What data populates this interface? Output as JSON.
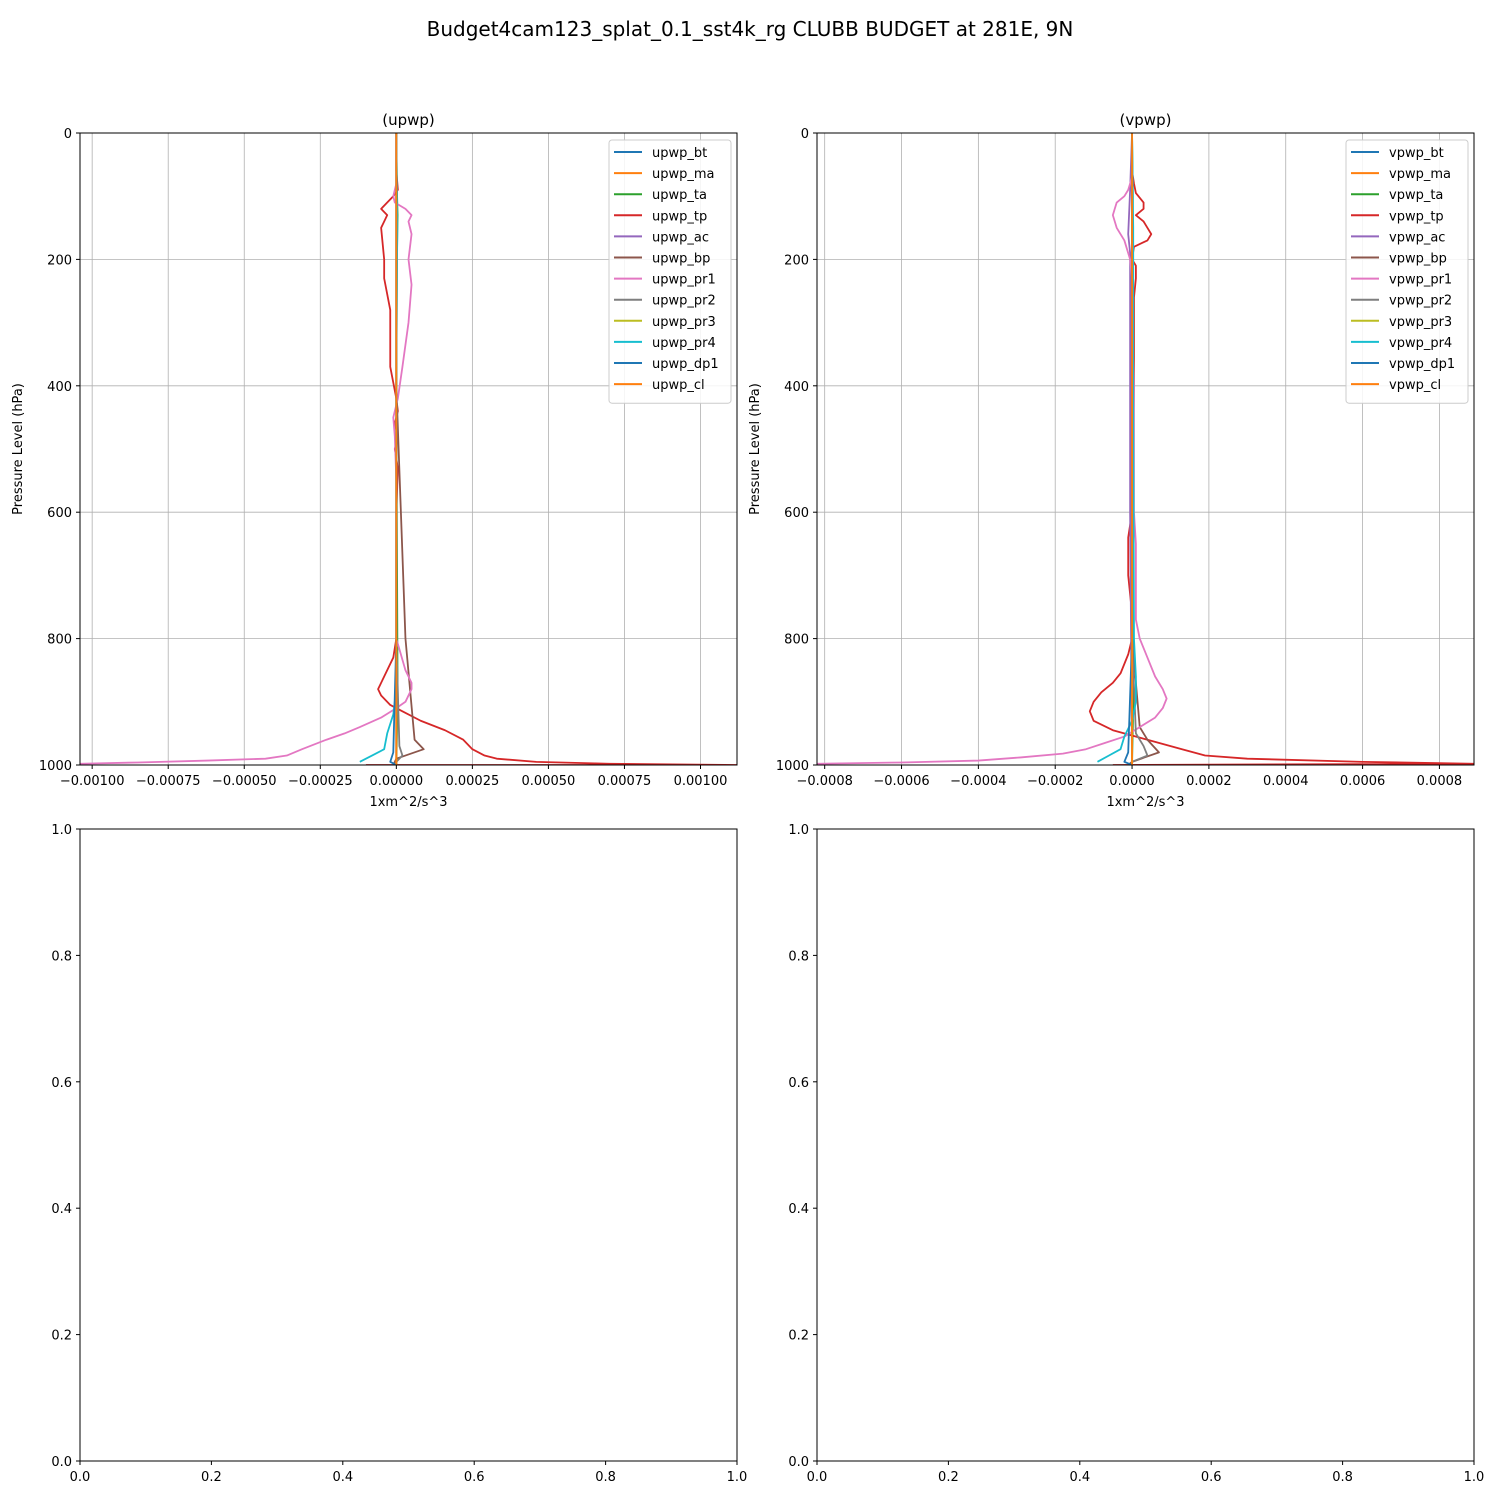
{
  "figure": {
    "suptitle": "Budget4cam123_splat_0.1_sst4k_rg CLUBB BUDGET at 281E, 9N"
  },
  "chart_data": [
    {
      "type": "line",
      "title": "(upwp)",
      "xlabel": "1xm^2/s^3",
      "ylabel": "Pressure Level (hPa)",
      "xlim": [
        -0.00104,
        0.00112
      ],
      "ylim": [
        1000,
        0
      ],
      "xticks": [
        -0.001,
        -0.00075,
        -0.0005,
        -0.00025,
        0,
        0.00025,
        0.0005,
        0.00075,
        0.001
      ],
      "xtick_labels": [
        "−0.00100",
        "−0.00075",
        "−0.00050",
        "−0.00025",
        "0.00000",
        "0.00025",
        "0.00050",
        "0.00075",
        "0.00100"
      ],
      "yticks": [
        0,
        200,
        400,
        600,
        800,
        1000
      ],
      "ytick_labels": [
        "0",
        "200",
        "400",
        "600",
        "800",
        "1000"
      ],
      "grid": true,
      "legend_loc": "upper right",
      "series": [
        {
          "name": "upwp_bt",
          "color": "#1f77b4",
          "x": [
            0,
            0,
            0,
            0,
            0,
            0,
            0
          ],
          "y": [
            0,
            200,
            400,
            600,
            800,
            950,
            1000
          ]
        },
        {
          "name": "upwp_ma",
          "color": "#ff7f0e",
          "x": [
            0,
            0,
            0,
            0,
            0,
            0,
            0
          ],
          "y": [
            0,
            200,
            400,
            600,
            800,
            950,
            1000
          ]
        },
        {
          "name": "upwp_ta",
          "color": "#2ca02c",
          "x": [
            0,
            2e-06,
            4e-06,
            2e-06,
            1e-06,
            0,
            4e-06,
            2e-06,
            0
          ],
          "y": [
            0,
            90,
            130,
            200,
            300,
            420,
            880,
            950,
            1000
          ]
        },
        {
          "name": "upwp_tp",
          "color": "#d62728",
          "x": [
            0,
            0,
            5e-06,
            -1e-05,
            -3e-05,
            -5e-05,
            -3e-05,
            -4e-05,
            -5e-05,
            -4e-05,
            -4e-05,
            -2e-05,
            -2e-05,
            0,
            5e-06,
            -5e-06,
            5e-06,
            -5e-06,
            5e-06,
            0,
            0,
            0,
            -1e-05,
            -4e-05,
            -6e-05,
            -5e-05,
            -2e-05,
            2e-05,
            8e-05,
            0.00016,
            0.00022,
            0.00025,
            0.00029,
            0.00033,
            0.00046,
            0.0007,
            0.00112,
            -0.0001
          ],
          "y": [
            0,
            60,
            90,
            100,
            110,
            120,
            130,
            140,
            150,
            200,
            230,
            280,
            370,
            420,
            440,
            460,
            480,
            500,
            530,
            600,
            700,
            800,
            830,
            860,
            880,
            890,
            905,
            915,
            930,
            945,
            960,
            975,
            985,
            990,
            995,
            998,
            1000,
            1000
          ]
        },
        {
          "name": "upwp_ac",
          "color": "#9467bd",
          "x": [
            0,
            0,
            0,
            0,
            0,
            0,
            0
          ],
          "y": [
            0,
            200,
            400,
            600,
            800,
            950,
            1000
          ]
        },
        {
          "name": "upwp_bp",
          "color": "#8c564b",
          "x": [
            0,
            0,
            0,
            3e-05,
            6e-05,
            9e-05,
            0,
            -1e-05
          ],
          "y": [
            0,
            200,
            400,
            800,
            960,
            975,
            990,
            1000
          ]
        },
        {
          "name": "upwp_pr1",
          "color": "#e377c2",
          "x": [
            0,
            0,
            -1e-05,
            -5e-06,
            3e-05,
            5e-05,
            4e-05,
            5e-05,
            4e-05,
            5e-05,
            4e-05,
            2e-05,
            5e-06,
            -1e-05,
            -5e-06,
            0,
            0,
            3e-05,
            5e-05,
            5e-05,
            3e-05,
            0,
            -5e-05,
            -0.00012,
            -0.00017,
            -0.00023,
            -0.00031,
            -0.00036,
            -0.00043,
            -0.00062,
            -0.00085,
            -0.00104
          ],
          "y": [
            0,
            80,
            100,
            110,
            120,
            130,
            140,
            160,
            200,
            240,
            300,
            370,
            420,
            450,
            480,
            550,
            800,
            850,
            870,
            880,
            900,
            910,
            925,
            940,
            950,
            960,
            975,
            985,
            990,
            993,
            996,
            998
          ]
        },
        {
          "name": "upwp_pr2",
          "color": "#7f7f7f",
          "x": [
            0,
            0,
            0,
            0,
            1e-05,
            2e-05,
            0,
            0
          ],
          "y": [
            0,
            200,
            400,
            800,
            970,
            985,
            995,
            1000
          ]
        },
        {
          "name": "upwp_pr3",
          "color": "#bcbd22",
          "x": [
            0,
            0,
            0,
            0,
            0,
            0,
            0
          ],
          "y": [
            0,
            200,
            400,
            600,
            800,
            950,
            1000
          ]
        },
        {
          "name": "upwp_pr4",
          "color": "#17becf",
          "x": [
            0,
            3e-06,
            0,
            0,
            -1e-05,
            -3e-05,
            -4e-05,
            -8e-05,
            -0.00012
          ],
          "y": [
            0,
            150,
            400,
            880,
            920,
            950,
            975,
            985,
            995
          ]
        },
        {
          "name": "upwp_dp1",
          "color": "#1f77b4",
          "x": [
            0,
            0,
            0,
            0,
            -1e-05,
            -2e-05,
            0
          ],
          "y": [
            0,
            200,
            400,
            800,
            980,
            995,
            1000
          ]
        },
        {
          "name": "upwp_cl",
          "color": "#ff7f0e",
          "x": [
            0,
            0,
            0,
            0,
            0,
            0,
            0
          ],
          "y": [
            0,
            200,
            400,
            600,
            800,
            950,
            1000
          ]
        }
      ]
    },
    {
      "type": "line",
      "title": "(vpwp)",
      "xlabel": "1xm^2/s^3",
      "ylabel": "Pressure Level (hPa)",
      "xlim": [
        -0.00082,
        0.00089
      ],
      "ylim": [
        1000,
        0
      ],
      "xticks": [
        -0.0008,
        -0.0006,
        -0.0004,
        -0.0002,
        0,
        0.0002,
        0.0004,
        0.0006,
        0.0008
      ],
      "xtick_labels": [
        "−0.0008",
        "−0.0006",
        "−0.0004",
        "−0.0002",
        "0.0000",
        "0.0002",
        "0.0004",
        "0.0006",
        "0.0008"
      ],
      "yticks": [
        0,
        200,
        400,
        600,
        800,
        1000
      ],
      "ytick_labels": [
        "0",
        "200",
        "400",
        "600",
        "800",
        "1000"
      ],
      "grid": true,
      "legend_loc": "upper right",
      "series": [
        {
          "name": "vpwp_bt",
          "color": "#1f77b4",
          "x": [
            0,
            0,
            0,
            0,
            0,
            0,
            0
          ],
          "y": [
            0,
            200,
            400,
            600,
            800,
            950,
            1000
          ]
        },
        {
          "name": "vpwp_ma",
          "color": "#ff7f0e",
          "x": [
            0,
            0,
            0,
            0,
            0,
            0,
            0
          ],
          "y": [
            0,
            200,
            400,
            600,
            800,
            950,
            1000
          ]
        },
        {
          "name": "vpwp_ta",
          "color": "#2ca02c",
          "x": [
            0,
            2e-06,
            0,
            1e-06,
            0,
            3e-06,
            0
          ],
          "y": [
            0,
            100,
            200,
            400,
            700,
            900,
            1000
          ]
        },
        {
          "name": "vpwp_tp",
          "color": "#d62728",
          "x": [
            0,
            0,
            5e-06,
            1e-05,
            3e-05,
            3e-05,
            1e-05,
            3e-05,
            4e-05,
            5e-05,
            4e-05,
            5e-06,
            0,
            1e-05,
            1e-05,
            5e-06,
            5e-06,
            5e-06,
            5e-06,
            5e-06,
            0,
            -1e-05,
            -1e-05,
            0,
            0,
            -1e-05,
            -2e-05,
            -3e-05,
            -5e-05,
            -8e-05,
            -0.0001,
            -0.00011,
            -0.0001,
            -5e-05,
            4e-05,
            0.00013,
            0.00019,
            0.0003,
            0.0006,
            0.00089,
            -5e-05
          ],
          "y": [
            0,
            60,
            80,
            95,
            110,
            120,
            130,
            140,
            150,
            160,
            170,
            180,
            200,
            210,
            230,
            260,
            290,
            310,
            350,
            400,
            600,
            640,
            700,
            760,
            800,
            825,
            840,
            855,
            870,
            885,
            900,
            915,
            930,
            945,
            960,
            975,
            985,
            990,
            995,
            998,
            1000
          ]
        },
        {
          "name": "vpwp_ac",
          "color": "#9467bd",
          "x": [
            0,
            -5e-06,
            -1e-05,
            -5e-06,
            -5e-06,
            -5e-06,
            -5e-06,
            -5e-06,
            0
          ],
          "y": [
            0,
            90,
            160,
            190,
            260,
            300,
            400,
            600,
            1000
          ]
        },
        {
          "name": "vpwp_bp",
          "color": "#8c564b",
          "x": [
            0,
            0,
            0,
            0,
            2e-05,
            4e-05,
            7e-05,
            0,
            -1e-05
          ],
          "y": [
            0,
            200,
            400,
            800,
            940,
            960,
            980,
            995,
            1000
          ]
        },
        {
          "name": "vpwp_pr1",
          "color": "#e377c2",
          "x": [
            0,
            0,
            -1e-05,
            -2e-05,
            -4e-05,
            -5e-05,
            -4e-05,
            -2e-05,
            -1e-05,
            -5e-06,
            0,
            0,
            5e-06,
            5e-06,
            1e-05,
            1e-05,
            2e-05,
            4e-05,
            6e-05,
            8e-05,
            9e-05,
            8e-05,
            6e-05,
            2e-05,
            -2e-05,
            -7e-05,
            -0.00012,
            -0.00018,
            -0.00029,
            -0.0004,
            -0.0006,
            -0.00082
          ],
          "y": [
            0,
            70,
            90,
            100,
            110,
            130,
            150,
            170,
            190,
            200,
            230,
            300,
            400,
            600,
            650,
            770,
            800,
            830,
            860,
            880,
            895,
            910,
            925,
            940,
            955,
            965,
            975,
            982,
            988,
            993,
            996,
            998
          ]
        },
        {
          "name": "vpwp_pr2",
          "color": "#7f7f7f",
          "x": [
            0,
            0,
            0,
            0,
            1e-05,
            3e-05,
            4e-05,
            0,
            0
          ],
          "y": [
            0,
            200,
            400,
            800,
            950,
            970,
            985,
            995,
            1000
          ]
        },
        {
          "name": "vpwp_pr3",
          "color": "#bcbd22",
          "x": [
            0,
            0,
            0,
            0,
            0,
            0,
            0
          ],
          "y": [
            0,
            200,
            400,
            600,
            800,
            950,
            1000
          ]
        },
        {
          "name": "vpwp_pr4",
          "color": "#17becf",
          "x": [
            0,
            3e-06,
            3e-06,
            5e-06,
            1e-05,
            1e-05,
            0,
            -2e-05,
            -3e-05,
            -6e-05,
            -9e-05
          ],
          "y": [
            0,
            150,
            400,
            800,
            860,
            900,
            930,
            955,
            975,
            985,
            995
          ]
        },
        {
          "name": "vpwp_dp1",
          "color": "#1f77b4",
          "x": [
            0,
            0,
            0,
            0,
            -1e-05,
            -2e-05,
            0
          ],
          "y": [
            0,
            200,
            400,
            800,
            980,
            995,
            1000
          ]
        },
        {
          "name": "vpwp_cl",
          "color": "#ff7f0e",
          "x": [
            0,
            0,
            0,
            0,
            0,
            0,
            0
          ],
          "y": [
            0,
            200,
            400,
            600,
            800,
            950,
            1000
          ]
        }
      ]
    },
    {
      "type": "line",
      "title": "",
      "xlim": [
        0,
        1
      ],
      "ylim": [
        0,
        1
      ],
      "xticks": [
        0,
        0.2,
        0.4,
        0.6,
        0.8,
        1.0
      ],
      "xtick_labels": [
        "0.0",
        "0.2",
        "0.4",
        "0.6",
        "0.8",
        "1.0"
      ],
      "yticks": [
        0,
        0.2,
        0.4,
        0.6,
        0.8,
        1.0
      ],
      "ytick_labels": [
        "0.0",
        "0.2",
        "0.4",
        "0.6",
        "0.8",
        "1.0"
      ],
      "grid": false,
      "series": []
    },
    {
      "type": "line",
      "title": "",
      "xlim": [
        0,
        1
      ],
      "ylim": [
        0,
        1
      ],
      "xticks": [
        0,
        0.2,
        0.4,
        0.6,
        0.8,
        1.0
      ],
      "xtick_labels": [
        "0.0",
        "0.2",
        "0.4",
        "0.6",
        "0.8",
        "1.0"
      ],
      "yticks": [
        0,
        0.2,
        0.4,
        0.6,
        0.8,
        1.0
      ],
      "ytick_labels": [
        "0.0",
        "0.2",
        "0.4",
        "0.6",
        "0.8",
        "1.0"
      ],
      "grid": false,
      "series": []
    }
  ]
}
